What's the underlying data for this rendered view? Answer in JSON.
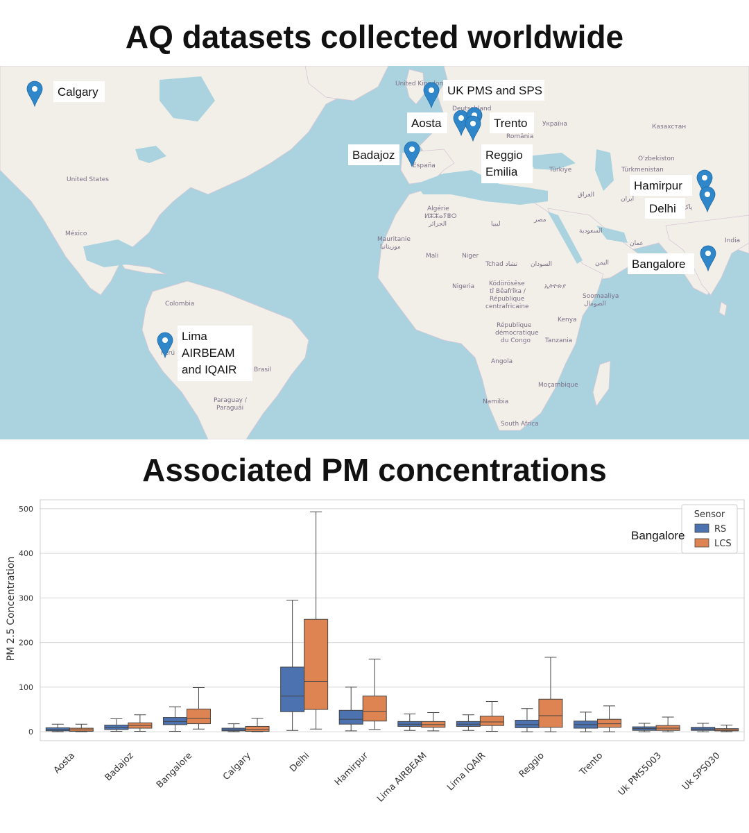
{
  "map": {
    "title": "AQ datasets collected worldwide",
    "base_labels": [
      {
        "text": "United Kingdom",
        "name": "map-label-uk"
      },
      {
        "text": "Deutschland",
        "name": "map-label-germany"
      },
      {
        "text": "Україна",
        "name": "map-label-ukraine"
      },
      {
        "text": "România",
        "name": "map-label-romania"
      },
      {
        "text": "Казахстан",
        "name": "map-label-kazakhstan"
      },
      {
        "text": "O'zbekiston",
        "name": "map-label-uzbekistan"
      },
      {
        "text": "Türkmenistan",
        "name": "map-label-turkmenistan"
      },
      {
        "text": "Türkiye",
        "name": "map-label-turkey"
      },
      {
        "text": "España",
        "name": "map-label-spain"
      },
      {
        "text": "United States",
        "name": "map-label-usa"
      },
      {
        "text": "México",
        "name": "map-label-mexico"
      },
      {
        "text": "Algérie",
        "name": "map-label-algeria"
      },
      {
        "text": "ⵍⵣⵣⴰⵢⴻⵔ",
        "name": "map-label-algeria-tifinagh"
      },
      {
        "text": "الجزائر",
        "name": "map-label-algeria-arabic"
      },
      {
        "text": "ليبيا",
        "name": "map-label-libya"
      },
      {
        "text": "مصر",
        "name": "map-label-egypt"
      },
      {
        "text": "Mauritanie",
        "name": "map-label-mauritania"
      },
      {
        "text": "موريتانيا",
        "name": "map-label-mauritania-arabic"
      },
      {
        "text": "Mali",
        "name": "map-label-mali"
      },
      {
        "text": "Niger",
        "name": "map-label-niger"
      },
      {
        "text": "Tchad تشاد",
        "name": "map-label-chad"
      },
      {
        "text": "السودان",
        "name": "map-label-sudan"
      },
      {
        "text": "السعودية",
        "name": "map-label-saudi"
      },
      {
        "text": "عمان",
        "name": "map-label-oman"
      },
      {
        "text": "اليمن",
        "name": "map-label-yemen"
      },
      {
        "text": "العراق",
        "name": "map-label-iraq"
      },
      {
        "text": "ایران",
        "name": "map-label-iran"
      },
      {
        "text": "پاک",
        "name": "map-label-pakistan"
      },
      {
        "text": "India",
        "name": "map-label-india"
      },
      {
        "text": "Nigeria",
        "name": "map-label-nigeria"
      },
      {
        "text": "Ködörösêse",
        "name": "map-label-car-1"
      },
      {
        "text": "tî Bêafrîka /",
        "name": "map-label-car-2"
      },
      {
        "text": "République",
        "name": "map-label-car-3"
      },
      {
        "text": "centrafricaine",
        "name": "map-label-car-4"
      },
      {
        "text": "ኢትዮጵያ",
        "name": "map-label-ethiopia"
      },
      {
        "text": "Soomaaliya",
        "name": "map-label-somalia"
      },
      {
        "text": "الصومال",
        "name": "map-label-somalia-arabic"
      },
      {
        "text": "Kenya",
        "name": "map-label-kenya"
      },
      {
        "text": "République",
        "name": "map-label-drc-1"
      },
      {
        "text": "démocratique",
        "name": "map-label-drc-2"
      },
      {
        "text": "du Congo",
        "name": "map-label-drc-3"
      },
      {
        "text": "Tanzania",
        "name": "map-label-tanzania"
      },
      {
        "text": "Angola",
        "name": "map-label-angola"
      },
      {
        "text": "Moçambique",
        "name": "map-label-mozambique"
      },
      {
        "text": "Namibia",
        "name": "map-label-namibia"
      },
      {
        "text": "South Africa",
        "name": "map-label-south-africa"
      },
      {
        "text": "Colombia",
        "name": "map-label-colombia"
      },
      {
        "text": "Brasil",
        "name": "map-label-brazil"
      },
      {
        "text": "Paraguay /",
        "name": "map-label-paraguay-1"
      },
      {
        "text": "Paraguái",
        "name": "map-label-paraguay-2"
      },
      {
        "text": "Perú",
        "name": "map-label-peru"
      }
    ],
    "markers": [
      {
        "lines": [
          "Calgary"
        ],
        "name": "calgary"
      },
      {
        "lines": [
          "UK PMS and SPS"
        ],
        "name": "uk-pms-sps"
      },
      {
        "lines": [
          "Aosta"
        ],
        "name": "aosta"
      },
      {
        "lines": [
          "Trento"
        ],
        "name": "trento"
      },
      {
        "lines": [
          "Badajoz"
        ],
        "name": "badajoz"
      },
      {
        "lines": [
          "Reggio",
          "Emilia"
        ],
        "name": "reggio-emilia"
      },
      {
        "lines": [
          "Hamirpur"
        ],
        "name": "hamirpur"
      },
      {
        "lines": [
          "Delhi"
        ],
        "name": "delhi"
      },
      {
        "lines": [
          "Bangalore"
        ],
        "name": "bangalore"
      },
      {
        "lines": [
          "Lima",
          "AIRBEAM",
          "and IQAIR"
        ],
        "name": "lima"
      }
    ],
    "colors": {
      "water": "#aad3df",
      "land": "#f2efe9",
      "marker": "#2f86c9"
    }
  },
  "chart": {
    "title": "Associated PM concentrations",
    "overlay_label": "Bangalore"
  },
  "chart_data": {
    "type": "boxplot",
    "title": "Associated PM concentrations",
    "xlabel": "",
    "ylabel": "PM 2.5 Concentration",
    "ylim": [
      -20,
      520
    ],
    "yticks": [
      0,
      100,
      200,
      300,
      400,
      500
    ],
    "grid": true,
    "legend": {
      "title": "Sensor",
      "position": "top-right"
    },
    "categories": [
      "Aosta",
      "Badajoz",
      "Bangalore",
      "Calgary",
      "Delhi",
      "Hamirpur",
      "Lima AIRBEAM",
      "Lima IQAIR",
      "Reggio",
      "Trento",
      "Uk PMS5003",
      "Uk SPS030"
    ],
    "series": [
      {
        "name": "RS",
        "color": "#4c72b0",
        "boxes": [
          {
            "whislo": 0,
            "q1": 2,
            "med": 5,
            "q3": 9,
            "whishi": 17
          },
          {
            "whislo": 1,
            "q1": 5,
            "med": 9,
            "q3": 15,
            "whishi": 29
          },
          {
            "whislo": 1,
            "q1": 16,
            "med": 23,
            "q3": 32,
            "whishi": 56
          },
          {
            "whislo": 0,
            "q1": 2,
            "med": 4,
            "q3": 8,
            "whishi": 18
          },
          {
            "whislo": 3,
            "q1": 45,
            "med": 80,
            "q3": 145,
            "whishi": 295
          },
          {
            "whislo": 2,
            "q1": 17,
            "med": 28,
            "q3": 48,
            "whishi": 100
          },
          {
            "whislo": 3,
            "q1": 12,
            "med": 17,
            "q3": 23,
            "whishi": 40
          },
          {
            "whislo": 3,
            "q1": 12,
            "med": 17,
            "q3": 23,
            "whishi": 38
          },
          {
            "whislo": 0,
            "q1": 9,
            "med": 16,
            "q3": 26,
            "whishi": 52
          },
          {
            "whislo": 0,
            "q1": 8,
            "med": 16,
            "q3": 24,
            "whishi": 44
          },
          {
            "whislo": 0,
            "q1": 3,
            "med": 7,
            "q3": 11,
            "whishi": 19
          },
          {
            "whislo": 0,
            "q1": 3,
            "med": 6,
            "q3": 10,
            "whishi": 19
          }
        ]
      },
      {
        "name": "LCS",
        "color": "#dd8452",
        "boxes": [
          {
            "whislo": 0,
            "q1": 1,
            "med": 4,
            "q3": 8,
            "whishi": 17
          },
          {
            "whislo": 1,
            "q1": 8,
            "med": 14,
            "q3": 20,
            "whishi": 38
          },
          {
            "whislo": 6,
            "q1": 18,
            "med": 30,
            "q3": 51,
            "whishi": 99
          },
          {
            "whislo": 0,
            "q1": 1,
            "med": 5,
            "q3": 12,
            "whishi": 30
          },
          {
            "whislo": 6,
            "q1": 50,
            "med": 113,
            "q3": 252,
            "whishi": 493
          },
          {
            "whislo": 5,
            "q1": 24,
            "med": 46,
            "q3": 80,
            "whishi": 163
          },
          {
            "whislo": 2,
            "q1": 10,
            "med": 16,
            "q3": 23,
            "whishi": 43
          },
          {
            "whislo": 1,
            "q1": 14,
            "med": 22,
            "q3": 35,
            "whishi": 68
          },
          {
            "whislo": 0,
            "q1": 10,
            "med": 36,
            "q3": 73,
            "whishi": 167
          },
          {
            "whislo": 0,
            "q1": 10,
            "med": 18,
            "q3": 28,
            "whishi": 58
          },
          {
            "whislo": 0,
            "q1": 3,
            "med": 8,
            "q3": 14,
            "whishi": 33
          },
          {
            "whislo": 0,
            "q1": 2,
            "med": 4,
            "q3": 7,
            "whishi": 15
          }
        ]
      }
    ]
  }
}
